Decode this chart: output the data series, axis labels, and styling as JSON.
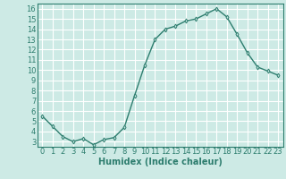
{
  "x": [
    0,
    1,
    2,
    3,
    4,
    5,
    6,
    7,
    8,
    9,
    10,
    11,
    12,
    13,
    14,
    15,
    16,
    17,
    18,
    19,
    20,
    21,
    22,
    23
  ],
  "y": [
    5.5,
    4.5,
    3.5,
    3.0,
    3.3,
    2.7,
    3.2,
    3.4,
    4.4,
    7.5,
    10.5,
    13.0,
    14.0,
    14.3,
    14.8,
    15.0,
    15.5,
    16.0,
    15.2,
    13.5,
    11.7,
    10.3,
    9.9,
    9.5
  ],
  "line_color": "#2d7d6e",
  "marker": "d",
  "marker_size": 2.5,
  "bg_color": "#cdeae5",
  "grid_color": "#ffffff",
  "tick_color": "#2d7d6e",
  "xlabel": "Humidex (Indice chaleur)",
  "xlim": [
    -0.5,
    23.5
  ],
  "ylim": [
    2.5,
    16.5
  ],
  "yticks": [
    3,
    4,
    5,
    6,
    7,
    8,
    9,
    10,
    11,
    12,
    13,
    14,
    15,
    16
  ],
  "xticks": [
    0,
    1,
    2,
    3,
    4,
    5,
    6,
    7,
    8,
    9,
    10,
    11,
    12,
    13,
    14,
    15,
    16,
    17,
    18,
    19,
    20,
    21,
    22,
    23
  ],
  "xlabel_fontsize": 7,
  "tick_fontsize": 6,
  "linewidth": 1.0
}
